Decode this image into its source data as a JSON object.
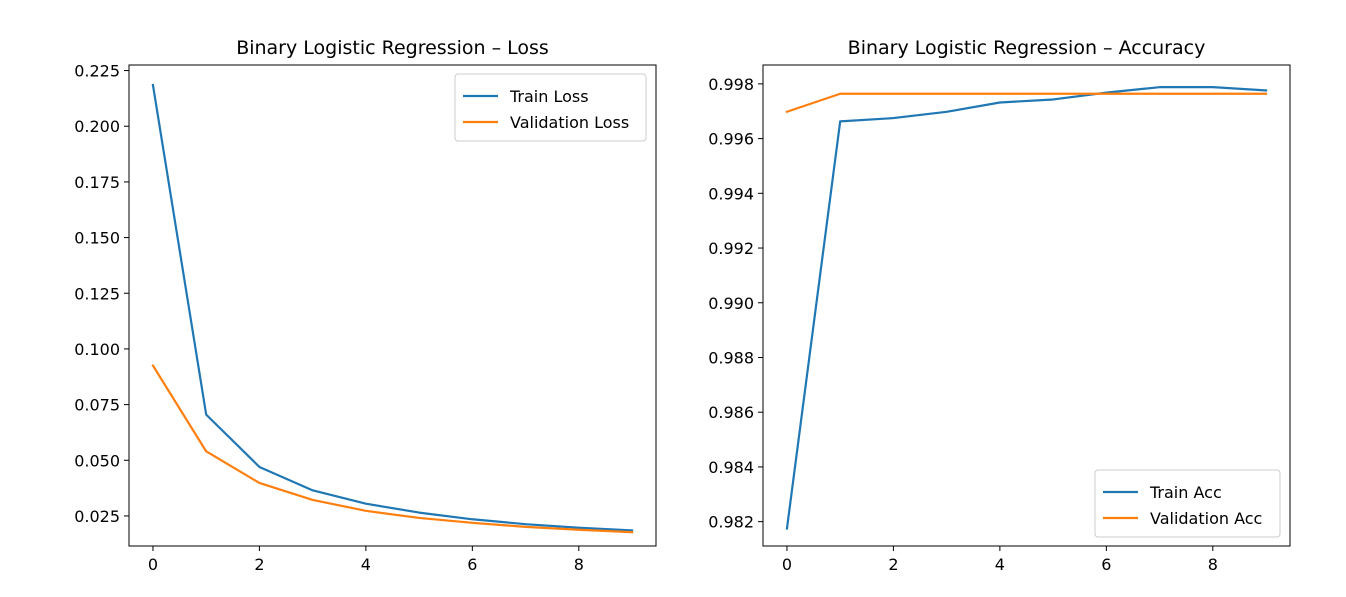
{
  "chart_data": [
    {
      "type": "line",
      "title": "Binary Logistic Regression – Loss",
      "xlabel": "",
      "ylabel": "",
      "xlim": [
        -0.45,
        9.45
      ],
      "ylim": [
        0.0115,
        0.2275
      ],
      "xticks": [
        0,
        2,
        4,
        6,
        8
      ],
      "xtick_labels": [
        "0",
        "2",
        "4",
        "6",
        "8"
      ],
      "yticks": [
        0.025,
        0.05,
        0.075,
        0.1,
        0.125,
        0.15,
        0.175,
        0.2,
        0.225
      ],
      "ytick_labels": [
        "0.025",
        "0.050",
        "0.075",
        "0.100",
        "0.125",
        "0.150",
        "0.175",
        "0.200",
        "0.225"
      ],
      "grid": false,
      "legend": "upper right",
      "x": [
        0,
        1,
        2,
        3,
        4,
        5,
        6,
        7,
        8,
        9
      ],
      "series": [
        {
          "name": "Train Loss",
          "color": "#1f77b4",
          "values": [
            0.2185,
            0.0705,
            0.047,
            0.0365,
            0.0305,
            0.0265,
            0.0235,
            0.0213,
            0.0197,
            0.0185
          ]
        },
        {
          "name": "Validation Loss",
          "color": "#ff7f0e",
          "values": [
            0.0925,
            0.054,
            0.0398,
            0.0322,
            0.0273,
            0.0241,
            0.0219,
            0.0201,
            0.0188,
            0.0177
          ]
        }
      ]
    },
    {
      "type": "line",
      "title": "Binary Logistic Regression – Accuracy",
      "xlabel": "",
      "ylabel": "",
      "xlim": [
        -0.45,
        9.45
      ],
      "ylim": [
        0.98111,
        0.99869
      ],
      "xticks": [
        0,
        2,
        4,
        6,
        8
      ],
      "xtick_labels": [
        "0",
        "2",
        "4",
        "6",
        "8"
      ],
      "yticks": [
        0.982,
        0.984,
        0.986,
        0.988,
        0.99,
        0.992,
        0.994,
        0.996,
        0.998
      ],
      "ytick_labels": [
        "0.982",
        "0.984",
        "0.986",
        "0.988",
        "0.990",
        "0.992",
        "0.994",
        "0.996",
        "0.998"
      ],
      "grid": false,
      "legend": "lower right",
      "x": [
        0,
        1,
        2,
        3,
        4,
        5,
        6,
        7,
        8,
        9
      ],
      "series": [
        {
          "name": "Train Acc",
          "color": "#1f77b4",
          "values": [
            0.98175,
            0.99663,
            0.99675,
            0.99698,
            0.99732,
            0.99743,
            0.99768,
            0.99788,
            0.99788,
            0.99776
          ]
        },
        {
          "name": "Validation Acc",
          "color": "#ff7f0e",
          "values": [
            0.99698,
            0.99764,
            0.99764,
            0.99764,
            0.99764,
            0.99764,
            0.99764,
            0.99764,
            0.99764,
            0.99764
          ]
        }
      ]
    }
  ]
}
